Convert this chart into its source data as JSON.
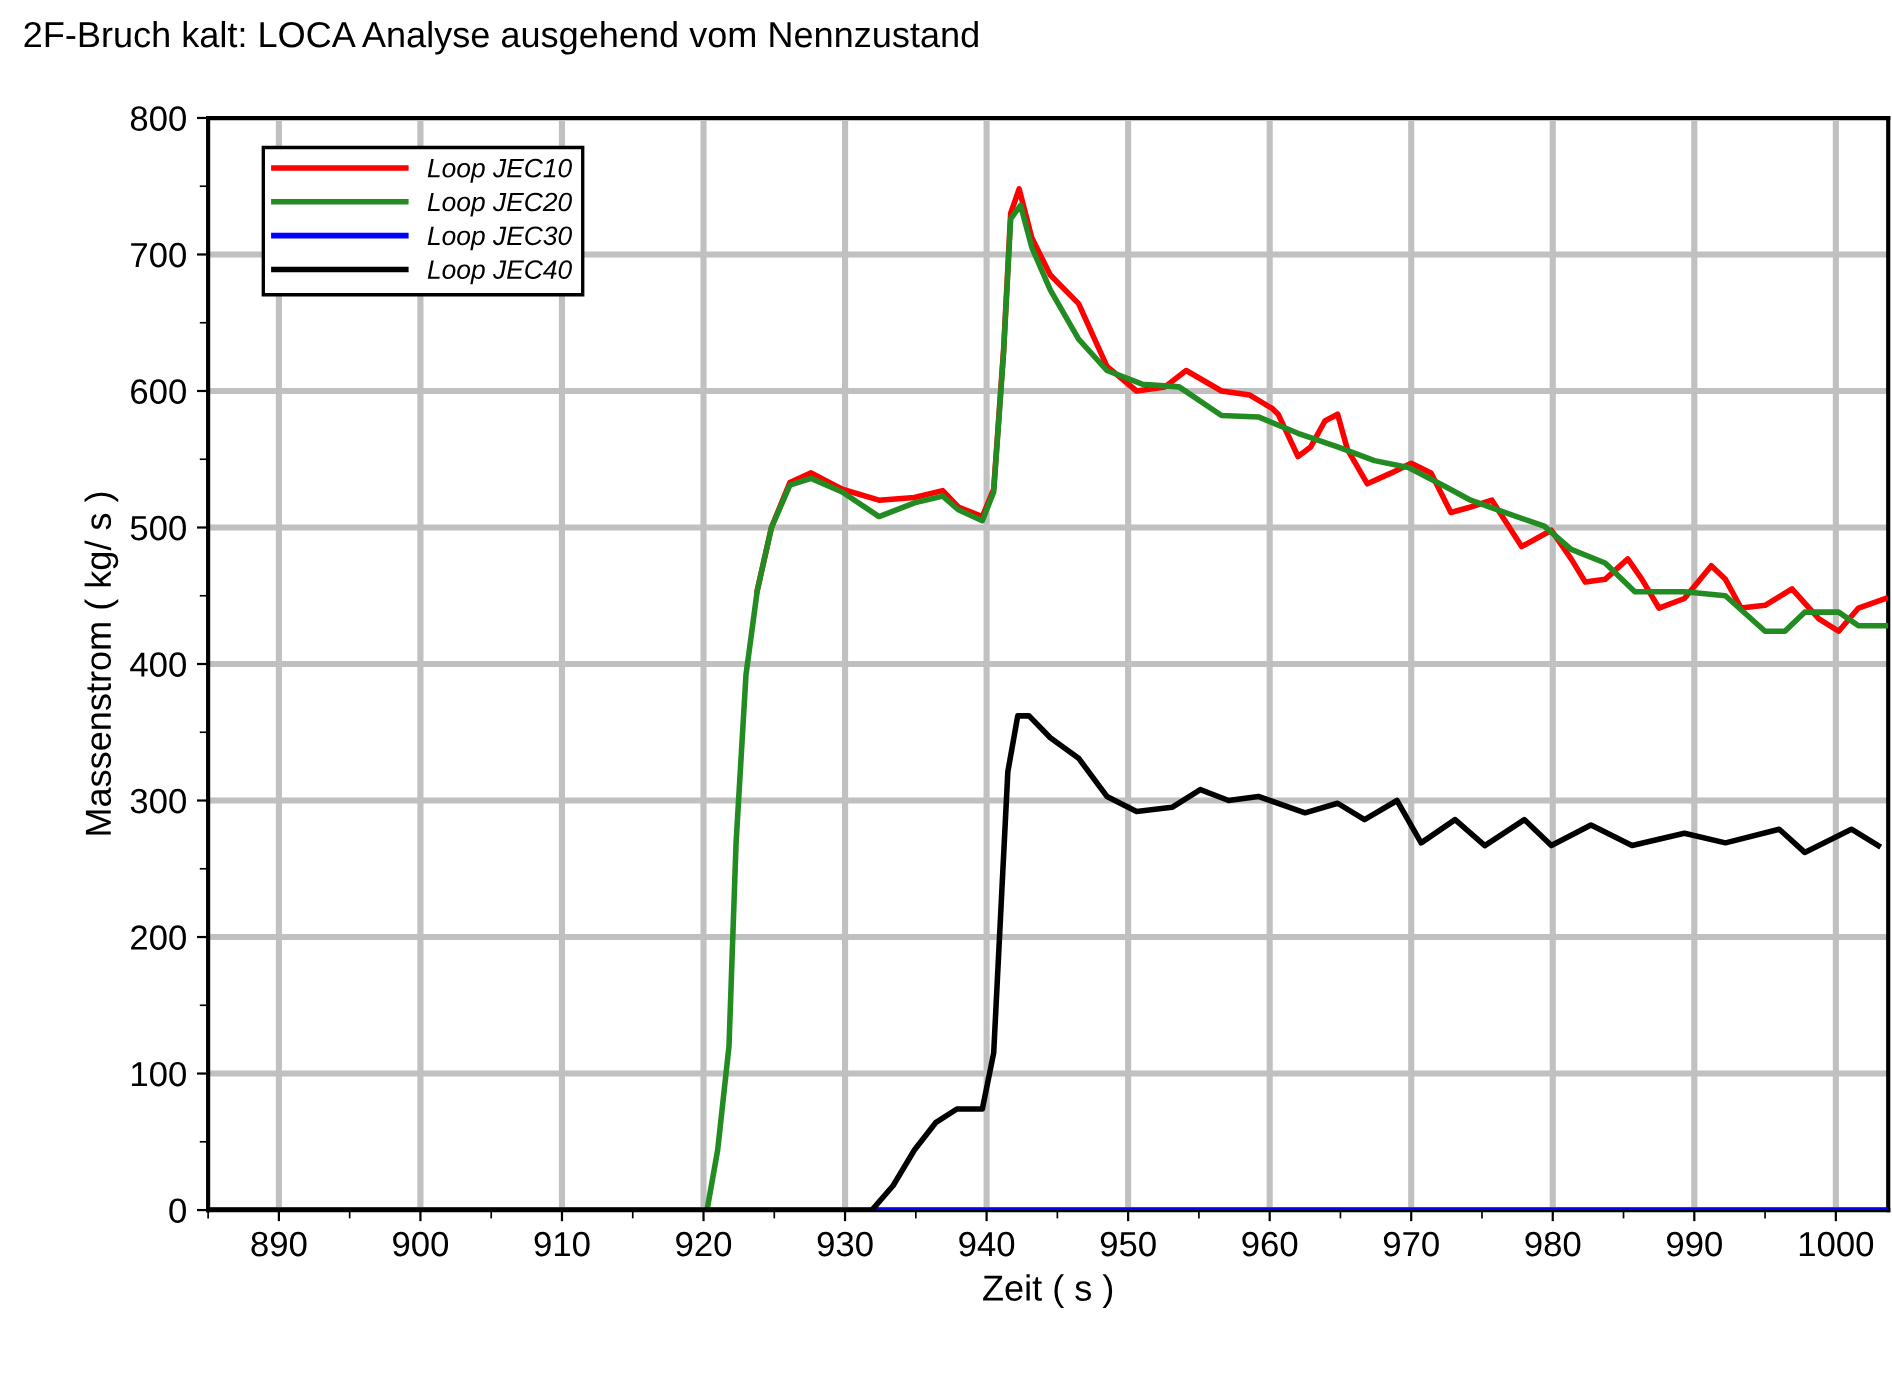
{
  "chart_data": {
    "type": "line",
    "title": "2F-Bruch kalt: LOCA Analyse ausgehend vom Nennzustand",
    "xlabel": "Zeit ( s )",
    "ylabel": "Massenstrom ( kg/ s )",
    "xlim": [
      885,
      1003.7
    ],
    "ylim": [
      0,
      800
    ],
    "xticks": [
      {
        "value": 885,
        "label": null
      },
      890,
      {
        "value": 895,
        "label": null
      },
      900,
      {
        "value": 905,
        "label": null
      },
      910,
      {
        "value": 915,
        "label": null
      },
      920,
      {
        "value": 925,
        "label": null
      },
      930,
      {
        "value": 935,
        "label": null
      },
      940,
      {
        "value": 945,
        "label": null
      },
      950,
      {
        "value": 955,
        "label": null
      },
      960,
      {
        "value": 965,
        "label": null
      },
      970,
      {
        "value": 975,
        "label": null
      },
      980,
      {
        "value": 985,
        "label": null
      },
      990,
      {
        "value": 995,
        "label": null
      },
      1000
    ],
    "yticks": [
      0,
      {
        "value": 50,
        "label": null
      },
      100,
      {
        "value": 150,
        "label": null
      },
      200,
      {
        "value": 250,
        "label": null
      },
      300,
      {
        "value": 350,
        "label": null
      },
      400,
      {
        "value": 450,
        "label": null
      },
      500,
      {
        "value": 550,
        "label": null
      },
      600,
      {
        "value": 650,
        "label": null
      },
      700,
      {
        "value": 750,
        "label": null
      },
      800
    ],
    "grid": true,
    "legend": "top left",
    "marker": "none",
    "line_style": "solid",
    "series": [
      {
        "name": "Loop JEC10",
        "color": "#ff0000",
        "x": [
          923.8,
          924.8,
          926.1,
          927.6,
          929.8,
          932.4,
          934.9,
          936.9,
          938,
          939.7,
          940.5,
          941.2,
          941.7,
          942.3,
          943.2,
          944.5,
          946.5,
          948.5,
          950.6,
          952.6,
          954.1,
          956.6,
          958.6,
          960.2,
          960.6,
          962,
          962.9,
          963.9,
          964.8,
          965.5,
          966.9,
          968.6,
          970,
          971.4,
          972.8,
          974.2,
          975.7,
          977.8,
          979.9,
          981.3,
          982.3,
          983.7,
          985.3,
          986.3,
          987.5,
          989.3,
          991.2,
          992.2,
          993.3,
          995,
          996.9,
          998.8,
          1000.2,
          1001.6,
          1003.5
        ],
        "values": [
          454,
          500,
          533,
          540,
          528,
          520,
          522,
          527,
          515,
          508,
          528,
          630,
          730,
          748,
          712,
          685,
          664,
          618,
          600,
          603,
          615,
          600,
          597,
          587,
          583,
          552,
          559,
          578,
          583,
          557,
          532,
          540,
          547,
          540,
          511,
          515,
          520,
          486,
          498,
          477,
          460,
          462,
          477,
          462,
          441,
          448,
          472,
          462,
          441,
          443,
          455,
          433,
          424,
          441,
          448
        ]
      },
      {
        "name": "Loop JEC20",
        "color": "#228b22",
        "x": [
          920.25,
          921,
          921.8,
          922.3,
          923,
          923.8,
          924.8,
          926.1,
          927.6,
          929.8,
          932.4,
          934.9,
          936.9,
          938,
          939.7,
          940.5,
          941.2,
          941.7,
          942.4,
          943.2,
          944.5,
          946.5,
          948.5,
          951,
          953.6,
          956.6,
          959.2,
          962,
          964.8,
          967.4,
          969.8,
          972.4,
          974.2,
          976.6,
          979.4,
          981.3,
          983.7,
          985.8,
          989.3,
          992.2,
          995,
          996.4,
          997.8,
          1000.2,
          1001.6,
          1003.7
        ],
        "values": [
          0,
          44,
          120,
          269,
          392,
          454,
          500,
          531,
          536,
          526,
          508,
          518,
          523,
          513,
          505,
          526,
          628,
          726,
          736,
          705,
          674,
          638,
          615,
          605,
          603,
          582,
          581,
          569,
          559,
          549,
          544,
          530,
          520,
          511,
          501,
          484,
          474,
          453,
          453,
          450,
          424,
          424,
          438,
          438,
          428,
          428
        ]
      },
      {
        "name": "Loop JEC30",
        "color": "#0000ff",
        "x": [
          932,
          1003.7
        ],
        "values": [
          0,
          0
        ]
      },
      {
        "name": "Loop JEC40",
        "color": "#000000",
        "x": [
          885,
          931.9,
          933.4,
          934.9,
          936.4,
          937.9,
          939.7,
          940.5,
          941,
          941.5,
          942.2,
          943,
          944.5,
          946.5,
          948.5,
          950.6,
          953.1,
          955.1,
          957.1,
          959.2,
          962.5,
          964.8,
          966.7,
          969,
          970.7,
          973.1,
          975.2,
          978,
          979.9,
          982.7,
          985.6,
          989.3,
          992.2,
          996,
          997.8,
          1001.1,
          1003
        ],
        "values": [
          0,
          0,
          18,
          44,
          64,
          74,
          74,
          115,
          218,
          321,
          362,
          362,
          346,
          331,
          303,
          292,
          295,
          308,
          300,
          303,
          291,
          298,
          286,
          300,
          269,
          286,
          267,
          286,
          267,
          282,
          267,
          276,
          269,
          279,
          262,
          279,
          267
        ]
      }
    ]
  }
}
